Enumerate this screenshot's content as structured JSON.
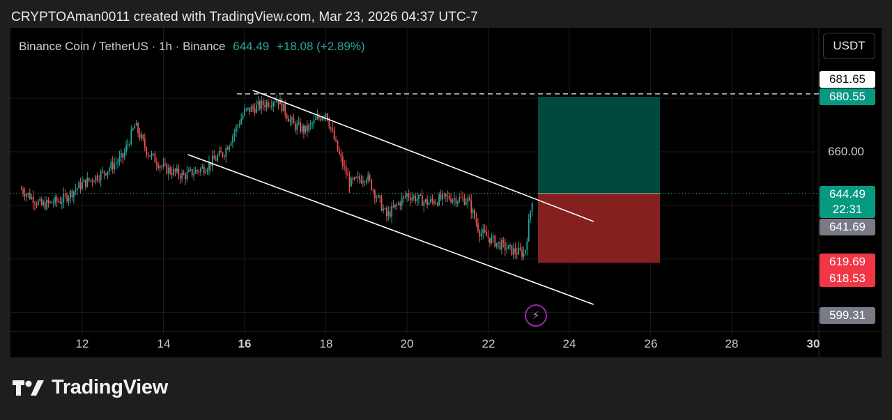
{
  "credit": "CRYPTOAman0011 created with TradingView.com, Mar 23, 2026 04:37 UTC-7",
  "legend": {
    "symbol": "Binance Coin / TetherUS",
    "interval": "1h",
    "exchange": "Binance",
    "sep": "·",
    "last": "644.49",
    "change": "+18.08 (+2.89%)"
  },
  "currency_button": "USDT",
  "price_labels": {
    "p681": "681.65",
    "p680": "680.55",
    "p660": "660.00",
    "p644": "644.49",
    "countdown": "22:31",
    "p641": "641.69",
    "p619": "619.69",
    "p618": "618.53",
    "p599": "599.31"
  },
  "x_ticks": [
    "12",
    "14",
    "16",
    "18",
    "20",
    "22",
    "24",
    "26",
    "28",
    "30"
  ],
  "brand": "TradingView",
  "icons": {
    "logo": "tradingview-logo-icon",
    "bolt": "lightning-bolt-icon"
  },
  "colors": {
    "up": "#26a69a",
    "down": "#ef5350",
    "target_zone": "#004d40",
    "stop_zone": "#8b2220",
    "price_tag_green": "#089981",
    "price_tag_red": "#f23645",
    "price_tag_gray": "#787b86"
  },
  "chart_data": {
    "type": "candlestick",
    "symbol": "Binance Coin / TetherUS",
    "interval": "1h",
    "x_ticks": [
      "12",
      "14",
      "16",
      "18",
      "20",
      "22",
      "24",
      "26",
      "28",
      "30"
    ],
    "ylim": [
      595,
      690
    ],
    "close_path": [
      [
        "10.5",
        646
      ],
      [
        "11",
        640
      ],
      [
        "11.5",
        642
      ],
      [
        "12",
        648
      ],
      [
        "12.5",
        652
      ],
      [
        "13",
        658
      ],
      [
        "13.3",
        670
      ],
      [
        "13.6",
        660
      ],
      [
        "14",
        654
      ],
      [
        "14.5",
        651
      ],
      [
        "15",
        654
      ],
      [
        "15.5",
        660
      ],
      [
        "16",
        675
      ],
      [
        "16.5",
        678
      ],
      [
        "16.8",
        680
      ],
      [
        "17.2",
        670
      ],
      [
        "17.5",
        668
      ],
      [
        "18",
        675
      ],
      [
        "18.3",
        660
      ],
      [
        "18.6",
        648
      ],
      [
        "19",
        651
      ],
      [
        "19.5",
        636
      ],
      [
        "20",
        644
      ],
      [
        "20.5",
        641
      ],
      [
        "21",
        643
      ],
      [
        "21.5",
        642
      ],
      [
        "21.8",
        630
      ],
      [
        "22.2",
        626
      ],
      [
        "22.6",
        623
      ],
      [
        "22.9",
        622
      ],
      [
        "23.1",
        644.49
      ]
    ],
    "trendlines": {
      "upper": [
        [
          "16.2",
          683
        ],
        [
          "24.6",
          634
        ]
      ],
      "lower": [
        [
          "14.6",
          659
        ],
        [
          "24.6",
          603
        ]
      ]
    },
    "reference_line": 681.65,
    "position": {
      "entry": 644.49,
      "target": 680.55,
      "stop": 618.53
    }
  }
}
